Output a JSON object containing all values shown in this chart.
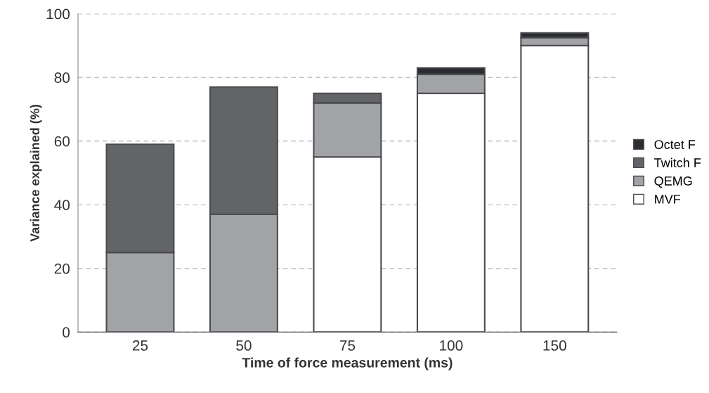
{
  "chart_data": {
    "type": "bar",
    "stacked": true,
    "xlabel": "Time of force measurement (ms)",
    "ylabel": "Variance explained (%)",
    "categories": [
      "25",
      "50",
      "75",
      "100",
      "150"
    ],
    "series": [
      {
        "name": "MVF",
        "color": "#ffffff",
        "values": [
          0,
          0,
          55,
          75,
          90
        ]
      },
      {
        "name": "QEMG",
        "color": "#a2a3a6",
        "values": [
          25,
          37,
          17,
          6,
          2.5
        ]
      },
      {
        "name": "Twitch F",
        "color": "#636468",
        "values": [
          34,
          40,
          3,
          0,
          0
        ]
      },
      {
        "name": "Octet F",
        "color": "#2b2d33",
        "values": [
          0,
          0,
          0,
          2,
          1.5
        ]
      }
    ],
    "ylim": [
      0,
      100
    ],
    "yticks": [
      0,
      20,
      40,
      60,
      80,
      100
    ],
    "grid": "y",
    "legend": "right"
  }
}
